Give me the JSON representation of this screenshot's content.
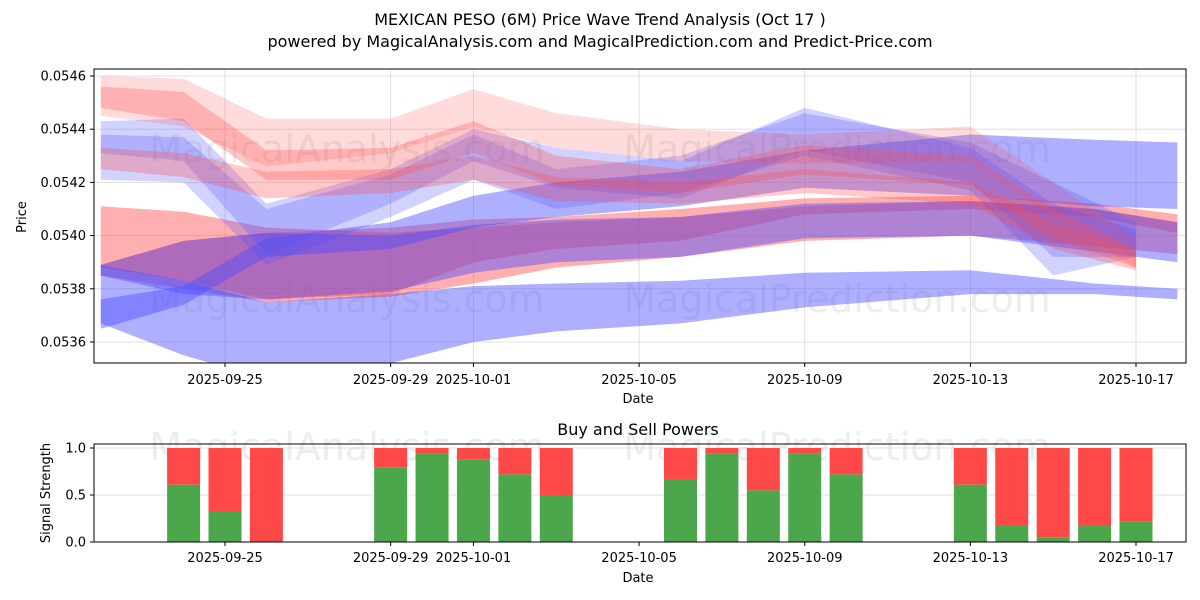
{
  "figure": {
    "title_line1": "MEXICAN PESO (6M) Price Wave Trend Analysis (Oct 17 )",
    "title_line2": "powered by MagicalAnalysis.com and MagicalPrediction.com and Predict-Price.com",
    "watermarks": [
      "MagicalAnalysis.com",
      "MagicalPrediction.com"
    ]
  },
  "colors": {
    "red_band": "#ff4d4d",
    "blue_band": "#4d4dff",
    "buy": "#4ca64c",
    "sell": "#ff4949",
    "grid": "#d9d9d9"
  },
  "chart_data": [
    {
      "type": "area",
      "title": "",
      "xlabel": "Date",
      "ylabel": "Price",
      "ylim": [
        0.05352,
        0.05462
      ],
      "xlim": [
        "2025-09-21",
        "2025-10-18"
      ],
      "grid": true,
      "x_ticks": [
        "2025-09-25",
        "2025-09-29",
        "2025-10-01",
        "2025-10-05",
        "2025-10-09",
        "2025-10-13",
        "2025-10-17"
      ],
      "y_ticks": [
        "0.0536",
        "0.0538",
        "0.0540",
        "0.0542",
        "0.0544",
        "0.0546"
      ],
      "bands": [
        {
          "color": "red",
          "alpha": 0.45,
          "x": [
            "2025-09-22",
            "2025-09-24",
            "2025-09-26",
            "2025-09-29",
            "2025-10-01",
            "2025-10-03",
            "2025-10-06",
            "2025-10-09",
            "2025-10-13",
            "2025-10-16",
            "2025-10-18"
          ],
          "upper": [
            0.05411,
            0.05409,
            0.05403,
            0.05401,
            0.05403,
            0.05405,
            0.05407,
            0.05411,
            0.05413,
            0.0541,
            0.05405
          ],
          "lower": [
            0.05388,
            0.05383,
            0.05376,
            0.05378,
            0.0539,
            0.05395,
            0.05398,
            0.05408,
            0.0541,
            0.05407,
            0.05401
          ]
        },
        {
          "color": "red",
          "alpha": 0.45,
          "x": [
            "2025-09-22",
            "2025-09-24",
            "2025-09-26",
            "2025-09-29",
            "2025-10-01",
            "2025-10-03",
            "2025-10-06",
            "2025-10-09",
            "2025-10-13",
            "2025-10-16",
            "2025-10-18"
          ],
          "upper": [
            0.05389,
            0.05398,
            0.05401,
            0.05403,
            0.05406,
            0.05407,
            0.0541,
            0.05414,
            0.05415,
            0.05412,
            0.05408
          ],
          "lower": [
            0.05385,
            0.0538,
            0.05375,
            0.05377,
            0.05382,
            0.05388,
            0.05392,
            0.05398,
            0.054,
            0.05396,
            0.05393
          ]
        },
        {
          "color": "blue",
          "alpha": 0.45,
          "x": [
            "2025-09-22",
            "2025-09-24",
            "2025-09-26",
            "2025-09-29",
            "2025-10-01",
            "2025-10-03",
            "2025-10-06",
            "2025-10-09",
            "2025-10-13",
            "2025-10-16",
            "2025-10-18"
          ],
          "upper": [
            0.05389,
            0.05383,
            0.05375,
            0.05378,
            0.05381,
            0.05382,
            0.05383,
            0.05386,
            0.05387,
            0.05382,
            0.0538
          ],
          "lower": [
            0.05367,
            0.05355,
            0.05346,
            0.05352,
            0.0536,
            0.05364,
            0.05367,
            0.05373,
            0.05378,
            0.05378,
            0.05376
          ]
        },
        {
          "color": "blue",
          "alpha": 0.45,
          "x": [
            "2025-09-22",
            "2025-09-24",
            "2025-09-26",
            "2025-09-29",
            "2025-10-01",
            "2025-10-03",
            "2025-10-06",
            "2025-10-09",
            "2025-10-13",
            "2025-10-16",
            "2025-10-18"
          ],
          "upper": [
            0.05389,
            0.05398,
            0.05401,
            0.054,
            0.05404,
            0.05406,
            0.05407,
            0.05412,
            0.05413,
            0.0541,
            0.05405
          ],
          "lower": [
            0.05385,
            0.05378,
            0.05376,
            0.05379,
            0.05386,
            0.0539,
            0.05392,
            0.05399,
            0.054,
            0.05394,
            0.0539
          ]
        },
        {
          "color": "blue",
          "alpha": 0.45,
          "x": [
            "2025-09-22",
            "2025-09-24",
            "2025-09-26",
            "2025-09-29",
            "2025-10-01",
            "2025-10-03",
            "2025-10-06",
            "2025-10-09",
            "2025-10-13",
            "2025-10-16",
            "2025-10-18"
          ],
          "upper": [
            0.05376,
            0.05381,
            0.05399,
            0.05405,
            0.05415,
            0.0542,
            0.05424,
            0.05432,
            0.05438,
            0.05436,
            0.05435
          ],
          "lower": [
            0.05365,
            0.05374,
            0.05392,
            0.05395,
            0.05403,
            0.05407,
            0.05411,
            0.05418,
            0.05415,
            0.05411,
            0.0541
          ]
        },
        {
          "color": "blue",
          "alpha": 0.25,
          "x": [
            "2025-09-22",
            "2025-09-24",
            "2025-09-26",
            "2025-09-29",
            "2025-10-01",
            "2025-10-03",
            "2025-10-06",
            "2025-10-09",
            "2025-10-13",
            "2025-10-15",
            "2025-10-17"
          ],
          "upper": [
            0.05438,
            0.05437,
            0.0541,
            0.05423,
            0.05438,
            0.05425,
            0.0543,
            0.05446,
            0.05435,
            0.0542,
            0.05405
          ],
          "lower": [
            0.05421,
            0.0542,
            0.05389,
            0.05407,
            0.05421,
            0.0541,
            0.05416,
            0.0543,
            0.05417,
            0.05385,
            0.05392
          ]
        },
        {
          "color": "blue",
          "alpha": 0.25,
          "x": [
            "2025-09-22",
            "2025-09-24",
            "2025-09-26",
            "2025-09-29",
            "2025-10-01",
            "2025-10-03",
            "2025-10-06",
            "2025-10-09",
            "2025-10-13",
            "2025-10-15",
            "2025-10-17"
          ],
          "upper": [
            0.05443,
            0.05444,
            0.05412,
            0.05425,
            0.0544,
            0.05433,
            0.05428,
            0.05448,
            0.05433,
            0.05412,
            0.05402
          ],
          "lower": [
            0.05431,
            0.05428,
            0.05393,
            0.05412,
            0.05428,
            0.05418,
            0.05414,
            0.05432,
            0.0542,
            0.05392,
            0.05392
          ]
        },
        {
          "color": "red",
          "alpha": 0.2,
          "x": [
            "2025-09-22",
            "2025-09-24",
            "2025-09-26",
            "2025-09-29",
            "2025-10-01",
            "2025-10-03",
            "2025-10-06",
            "2025-10-09",
            "2025-10-13",
            "2025-10-15",
            "2025-10-17"
          ],
          "upper": [
            0.0546,
            0.05459,
            0.05444,
            0.05444,
            0.05455,
            0.05446,
            0.0544,
            0.05438,
            0.05441,
            0.0542,
            0.05399
          ],
          "lower": [
            0.05445,
            0.05441,
            0.05426,
            0.05431,
            0.05441,
            0.05433,
            0.05428,
            0.05427,
            0.05428,
            0.05407,
            0.05388
          ]
        },
        {
          "color": "red",
          "alpha": 0.3,
          "x": [
            "2025-09-22",
            "2025-09-24",
            "2025-09-26",
            "2025-09-29",
            "2025-10-01",
            "2025-10-03",
            "2025-10-06",
            "2025-10-09",
            "2025-10-13",
            "2025-10-15",
            "2025-10-17"
          ],
          "upper": [
            0.05456,
            0.05454,
            0.05432,
            0.05433,
            0.05443,
            0.0543,
            0.05425,
            0.05434,
            0.0543,
            0.0541,
            0.05395
          ],
          "lower": [
            0.05448,
            0.05443,
            0.05421,
            0.05421,
            0.05431,
            0.05419,
            0.05416,
            0.05423,
            0.05419,
            0.05399,
            0.05388
          ]
        },
        {
          "color": "red",
          "alpha": 0.3,
          "x": [
            "2025-09-22",
            "2025-09-24",
            "2025-09-26",
            "2025-09-29",
            "2025-10-01",
            "2025-10-03",
            "2025-10-06",
            "2025-10-09",
            "2025-10-13",
            "2025-10-15",
            "2025-10-17"
          ],
          "upper": [
            0.05433,
            0.05431,
            0.05424,
            0.05425,
            0.0543,
            0.05422,
            0.0542,
            0.05425,
            0.0542,
            0.05405,
            0.05394
          ],
          "lower": [
            0.05425,
            0.05422,
            0.05414,
            0.05416,
            0.05421,
            0.05413,
            0.05412,
            0.05416,
            0.05412,
            0.05395,
            0.05387
          ]
        }
      ]
    },
    {
      "type": "bar",
      "title": "Buy and Sell Powers",
      "xlabel": "Date",
      "ylabel": "Signal Strength",
      "ylim": [
        0.0,
        1.05
      ],
      "grid": true,
      "x_ticks": [
        "2025-09-25",
        "2025-09-29",
        "2025-10-01",
        "2025-10-05",
        "2025-10-09",
        "2025-10-13",
        "2025-10-17"
      ],
      "y_ticks": [
        "0.0",
        "0.5",
        "1.0"
      ],
      "categories": [
        "2025-09-24",
        "2025-09-25",
        "2025-09-26",
        "2025-09-29",
        "2025-09-30",
        "2025-10-01",
        "2025-10-02",
        "2025-10-03",
        "2025-10-06",
        "2025-10-07",
        "2025-10-08",
        "2025-10-09",
        "2025-10-10",
        "2025-10-13",
        "2025-10-14",
        "2025-10-15",
        "2025-10-16",
        "2025-10-17"
      ],
      "series": [
        {
          "name": "Buy",
          "values": [
            0.61,
            0.33,
            0.0,
            0.79,
            0.94,
            0.88,
            0.72,
            0.5,
            0.67,
            0.94,
            0.55,
            0.94,
            0.72,
            0.61,
            0.17,
            0.05,
            0.17,
            0.22
          ]
        },
        {
          "name": "Sell",
          "values": [
            0.39,
            0.67,
            1.0,
            0.21,
            0.06,
            0.12,
            0.28,
            0.5,
            0.33,
            0.06,
            0.45,
            0.06,
            0.28,
            0.39,
            0.83,
            0.95,
            0.83,
            0.78
          ]
        }
      ]
    }
  ]
}
